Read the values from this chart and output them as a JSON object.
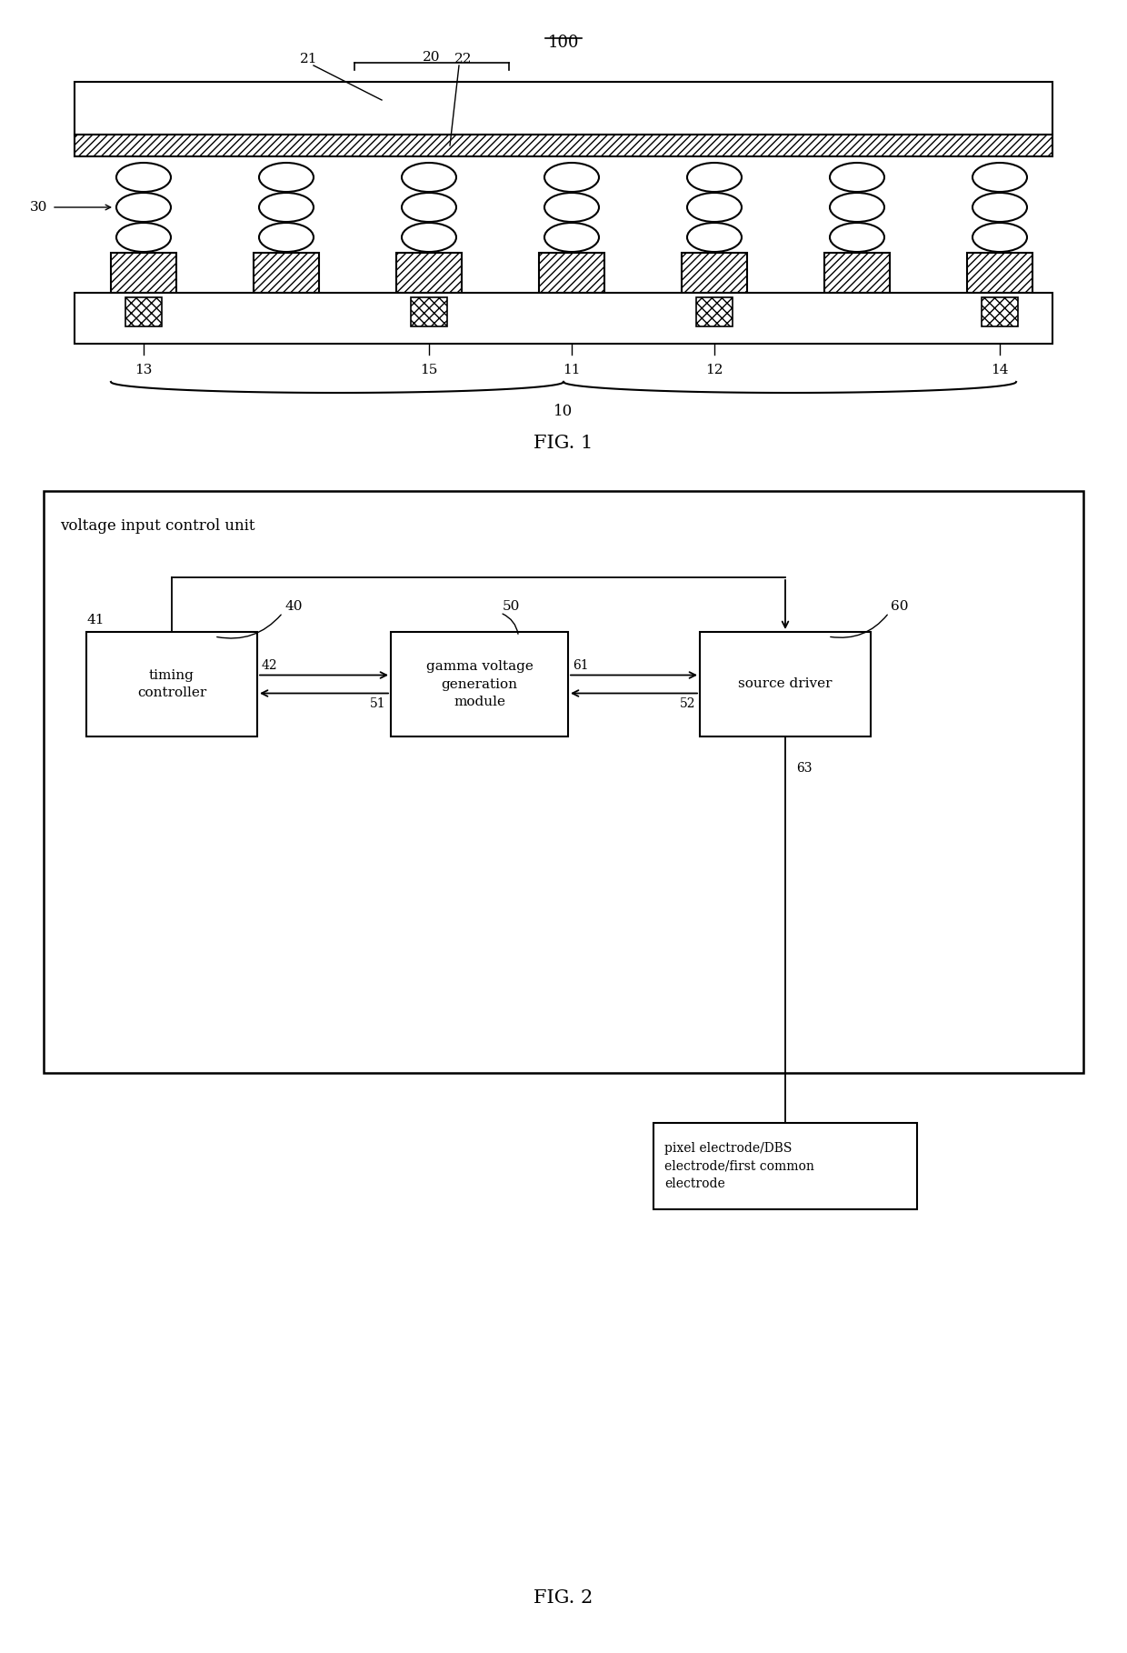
{
  "fig_width": 12.4,
  "fig_height": 18.18,
  "bg_color": "#ffffff",
  "fig1": {
    "label_100": "100",
    "label_20": "20",
    "label_21": "21",
    "label_22": "22",
    "label_30": "30",
    "label_10": "10",
    "label_11": "11",
    "label_12": "12",
    "label_13": "13",
    "label_14": "14",
    "label_15": "15",
    "fig_label": "FIG. 1"
  },
  "fig2": {
    "outer_box_label": "voltage input control unit",
    "box_timing_label": "timing\ncontroller",
    "box_gamma_label": "gamma voltage\ngeneration\nmodule",
    "box_source_label": "source driver",
    "box_pixel_label": "pixel electrode/DBS\nelectrode/first common\nelectrode",
    "label_40": "40",
    "label_41": "41",
    "label_42": "42",
    "label_50": "50",
    "label_51": "51",
    "label_52": "52",
    "label_60": "60",
    "label_61": "61",
    "label_63": "63",
    "fig_label": "FIG. 2"
  }
}
